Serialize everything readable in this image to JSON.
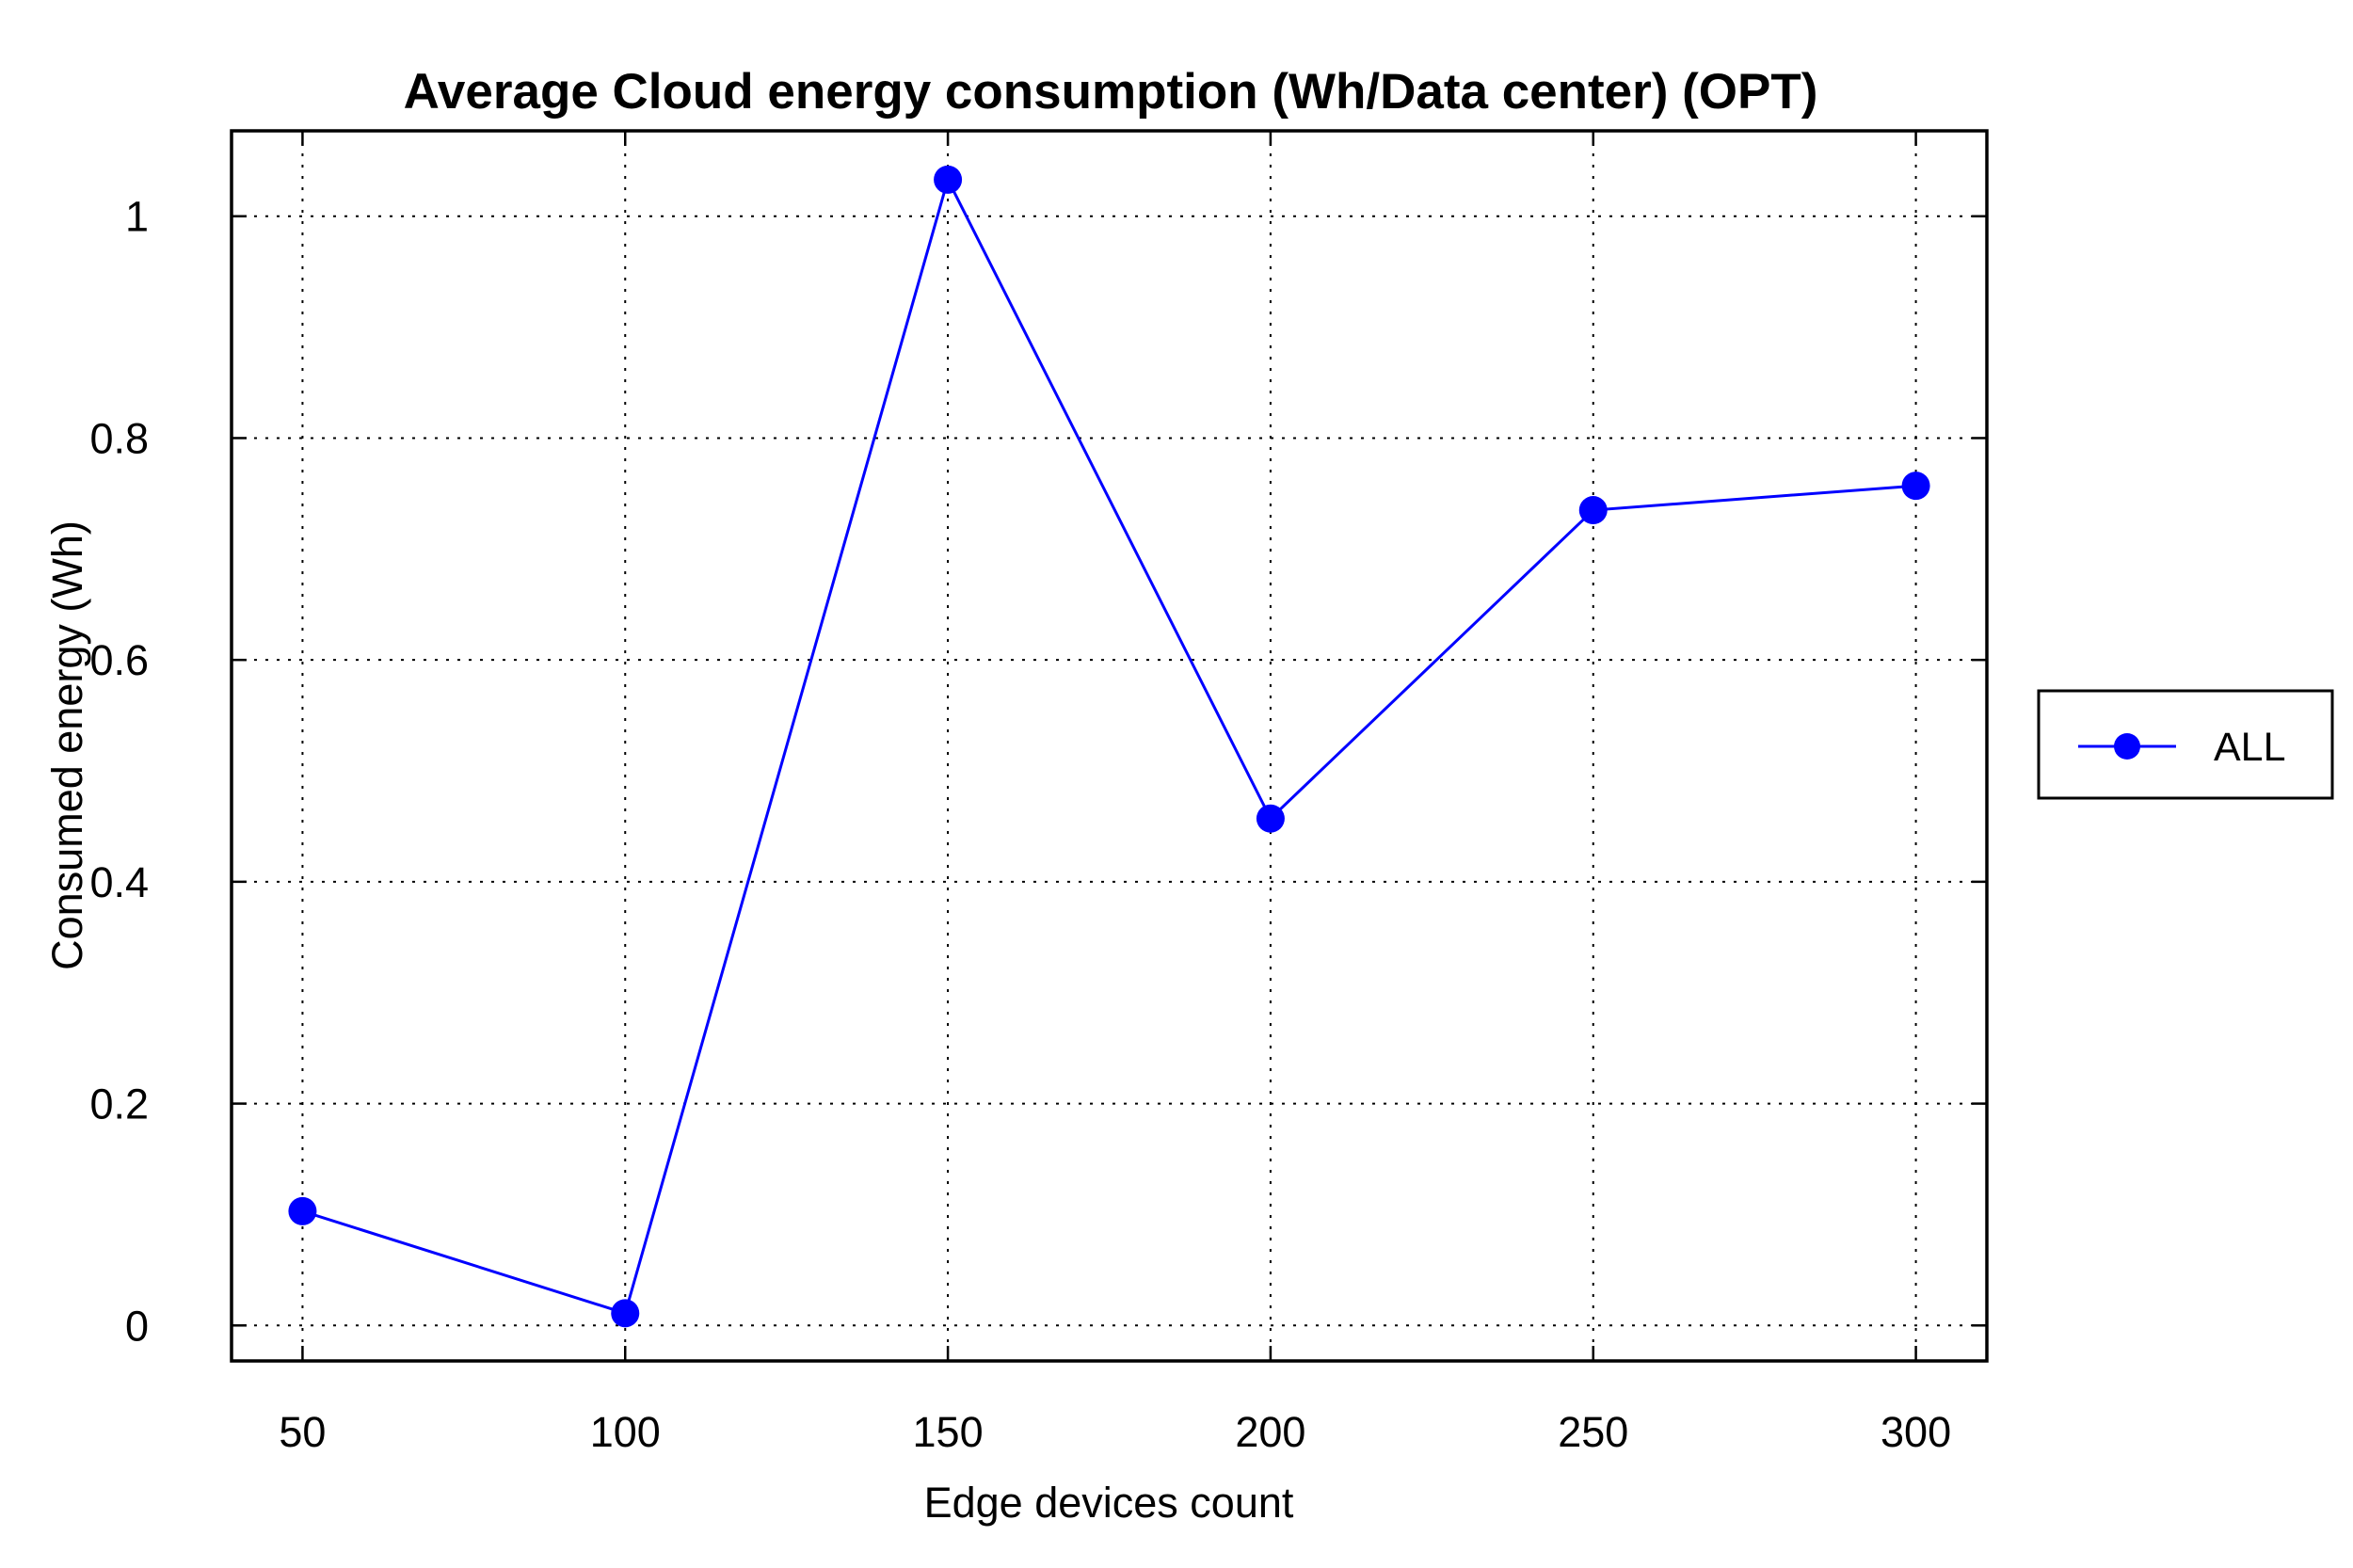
{
  "chart_data": {
    "type": "line",
    "title": "Average Cloud energy consumption (Wh/Data center) (OPT)",
    "xlabel": "Edge devices count",
    "ylabel": "Consumed energy (Wh)",
    "x": [
      50,
      100,
      150,
      200,
      250,
      300
    ],
    "x_ticks": [
      50,
      100,
      150,
      200,
      250,
      300
    ],
    "y_ticks": [
      0,
      0.2,
      0.4,
      0.6,
      0.8,
      1
    ],
    "y_tick_labels": [
      "0",
      "0.2",
      "0.4",
      "0.6",
      "0.8",
      "1"
    ],
    "xlim": [
      39,
      311
    ],
    "ylim": [
      -0.032,
      1.077
    ],
    "grid": true,
    "legend_position": "outside-right",
    "series": [
      {
        "name": "ALL",
        "color": "#0000ff",
        "marker": "circle",
        "values": [
          0.103,
          0.011,
          1.033,
          0.457,
          0.735,
          0.757
        ]
      }
    ]
  }
}
